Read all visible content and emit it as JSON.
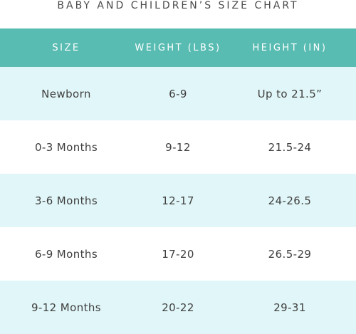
{
  "title": "BABY AND CHILDREN’S SIZE CHART",
  "headers": {
    "size": "SIZE",
    "weight": "WEIGHT (LBS)",
    "height": "HEIGHT (IN)"
  },
  "rows": [
    {
      "size": "Newborn",
      "weight": "6-9",
      "height": "Up to 21.5”"
    },
    {
      "size": "0-3 Months",
      "weight": "9-12",
      "height": "21.5-24"
    },
    {
      "size": "3-6 Months",
      "weight": "12-17",
      "height": "24-26.5"
    },
    {
      "size": "6-9 Months",
      "weight": "17-20",
      "height": "26.5-29"
    },
    {
      "size": "9-12 Months",
      "weight": "20-22",
      "height": "29-31"
    }
  ],
  "colors": {
    "header_background": "#58bcb2",
    "shaded_row": "#e1f6f8",
    "plain_row": "#ffffff",
    "text": "#3f3f3f"
  }
}
